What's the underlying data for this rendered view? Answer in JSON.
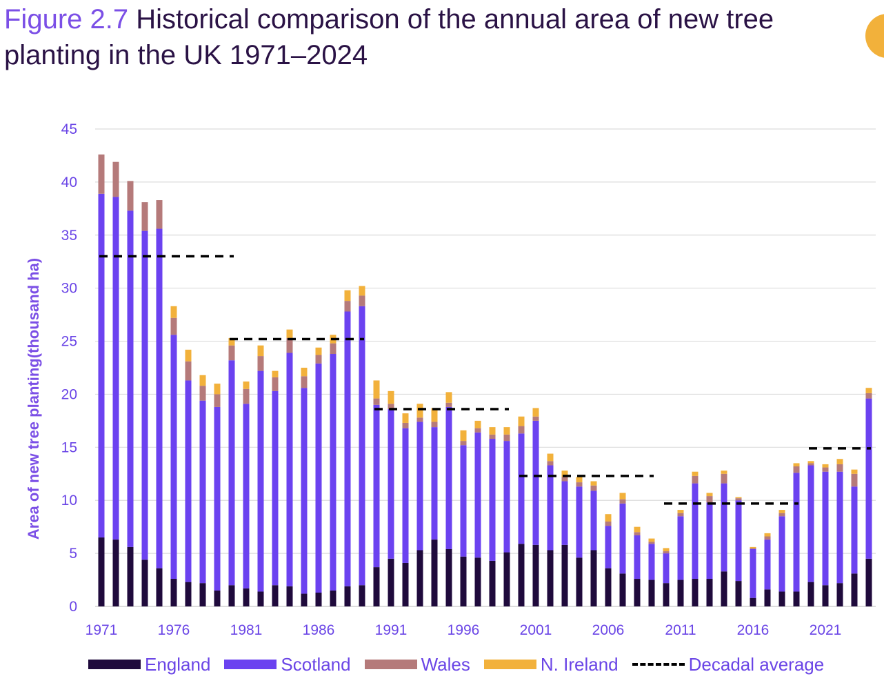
{
  "header": {
    "figure_label": "Figure 2.7",
    "title": "Historical comparison of the annual area of new tree planting in the UK 1971–2024"
  },
  "chart_data": {
    "type": "bar",
    "stacked": true,
    "title": "Historical comparison of the annual area of new tree planting in the UK 1971–2024",
    "xlabel": "",
    "ylabel": "Area of new tree planting(thousand ha)",
    "ylim": [
      0,
      45
    ],
    "yticks": [
      0,
      5,
      10,
      15,
      20,
      25,
      30,
      35,
      40,
      45
    ],
    "xtick_labels": [
      "1971",
      "1976",
      "1981",
      "1986",
      "1991",
      "1996",
      "2001",
      "2006",
      "2011",
      "2016",
      "2021"
    ],
    "grid": "horizontal",
    "legend_position": "bottom",
    "x": [
      1971,
      1972,
      1973,
      1974,
      1975,
      1976,
      1977,
      1978,
      1979,
      1980,
      1981,
      1982,
      1983,
      1984,
      1985,
      1986,
      1987,
      1988,
      1989,
      1990,
      1991,
      1992,
      1993,
      1994,
      1995,
      1996,
      1997,
      1998,
      1999,
      2000,
      2001,
      2002,
      2003,
      2004,
      2005,
      2006,
      2007,
      2008,
      2009,
      2010,
      2011,
      2012,
      2013,
      2014,
      2015,
      2016,
      2017,
      2018,
      2019,
      2020,
      2021,
      2022,
      2023,
      2024
    ],
    "series": [
      {
        "name": "England",
        "color": "#1f0a3c",
        "values": [
          6.5,
          6.3,
          5.6,
          4.4,
          3.6,
          2.6,
          2.3,
          2.2,
          1.5,
          2.0,
          1.7,
          1.4,
          2.0,
          1.9,
          1.2,
          1.3,
          1.5,
          1.9,
          2.0,
          3.7,
          4.5,
          4.1,
          5.3,
          6.3,
          5.4,
          4.7,
          4.6,
          4.3,
          5.1,
          5.9,
          5.8,
          5.3,
          5.8,
          4.6,
          5.3,
          3.6,
          3.1,
          2.6,
          2.5,
          2.2,
          2.5,
          2.6,
          2.6,
          3.3,
          2.4,
          0.8,
          1.6,
          1.4,
          1.4,
          2.3,
          2.0,
          2.2,
          3.1,
          4.5
        ]
      },
      {
        "name": "Scotland",
        "color": "#6b42f0",
        "values": [
          32.4,
          32.3,
          31.7,
          31.0,
          32.0,
          23.0,
          19.0,
          17.2,
          17.3,
          21.2,
          17.4,
          20.8,
          18.3,
          22.0,
          19.4,
          21.6,
          22.3,
          25.9,
          26.3,
          15.3,
          14.1,
          12.7,
          12.1,
          10.6,
          13.4,
          10.5,
          11.8,
          11.5,
          10.5,
          10.4,
          11.7,
          8.0,
          6.0,
          6.7,
          5.6,
          4.0,
          6.6,
          4.1,
          3.4,
          2.8,
          6.0,
          9.0,
          7.2,
          8.3,
          7.6,
          4.6,
          4.7,
          7.1,
          11.2,
          11.0,
          10.7,
          10.5,
          8.2,
          15.1
        ]
      },
      {
        "name": "Wales",
        "color": "#b57a7a",
        "values": [
          3.7,
          3.3,
          2.8,
          2.7,
          2.7,
          1.6,
          1.8,
          1.4,
          1.2,
          1.4,
          1.4,
          1.4,
          1.3,
          1.4,
          1.1,
          0.8,
          1.0,
          1.0,
          1.0,
          0.6,
          0.5,
          0.5,
          0.4,
          0.5,
          0.4,
          0.4,
          0.4,
          0.4,
          0.6,
          0.7,
          0.4,
          0.4,
          0.4,
          0.4,
          0.5,
          0.4,
          0.4,
          0.3,
          0.2,
          0.2,
          0.3,
          0.7,
          0.6,
          0.9,
          0.2,
          0.1,
          0.3,
          0.3,
          0.6,
          0.2,
          0.4,
          0.7,
          1.2,
          0.5
        ]
      },
      {
        "name": "N. Ireland",
        "color": "#f2b13b",
        "values": [
          0,
          0,
          0,
          0,
          0,
          1.1,
          1.1,
          1.0,
          1.0,
          0.7,
          0.7,
          1.0,
          0.6,
          0.8,
          0.8,
          0.7,
          0.8,
          1.0,
          0.9,
          1.7,
          1.2,
          0.9,
          1.3,
          1.3,
          1.0,
          1.0,
          0.7,
          0.7,
          0.7,
          0.9,
          0.8,
          0.7,
          0.6,
          0.5,
          0.4,
          0.7,
          0.6,
          0.5,
          0.3,
          0.3,
          0.3,
          0.4,
          0.3,
          0.3,
          0.1,
          0.1,
          0.3,
          0.3,
          0.3,
          0.2,
          0.3,
          0.5,
          0.4,
          0.5
        ]
      }
    ],
    "decadal_average": {
      "name": "Decadal average",
      "style": "dashed",
      "color": "#000000",
      "segments": [
        {
          "from": 1971,
          "to": 1980,
          "value": 33.0
        },
        {
          "from": 1980,
          "to": 1989,
          "value": 25.2
        },
        {
          "from": 1990,
          "to": 1999,
          "value": 18.6
        },
        {
          "from": 2000,
          "to": 2009,
          "value": 12.3
        },
        {
          "from": 2010,
          "to": 2019,
          "value": 9.7
        },
        {
          "from": 2020,
          "to": 2024,
          "value": 14.9
        }
      ]
    }
  },
  "legend": {
    "items": [
      {
        "label": "England",
        "color": "#1f0a3c",
        "kind": "box"
      },
      {
        "label": "Scotland",
        "color": "#6b42f0",
        "kind": "box"
      },
      {
        "label": "Wales",
        "color": "#b57a7a",
        "kind": "box"
      },
      {
        "label": "N. Ireland",
        "color": "#f2b13b",
        "kind": "box"
      },
      {
        "label": "Decadal average",
        "color": "#000000",
        "kind": "dash"
      }
    ]
  }
}
